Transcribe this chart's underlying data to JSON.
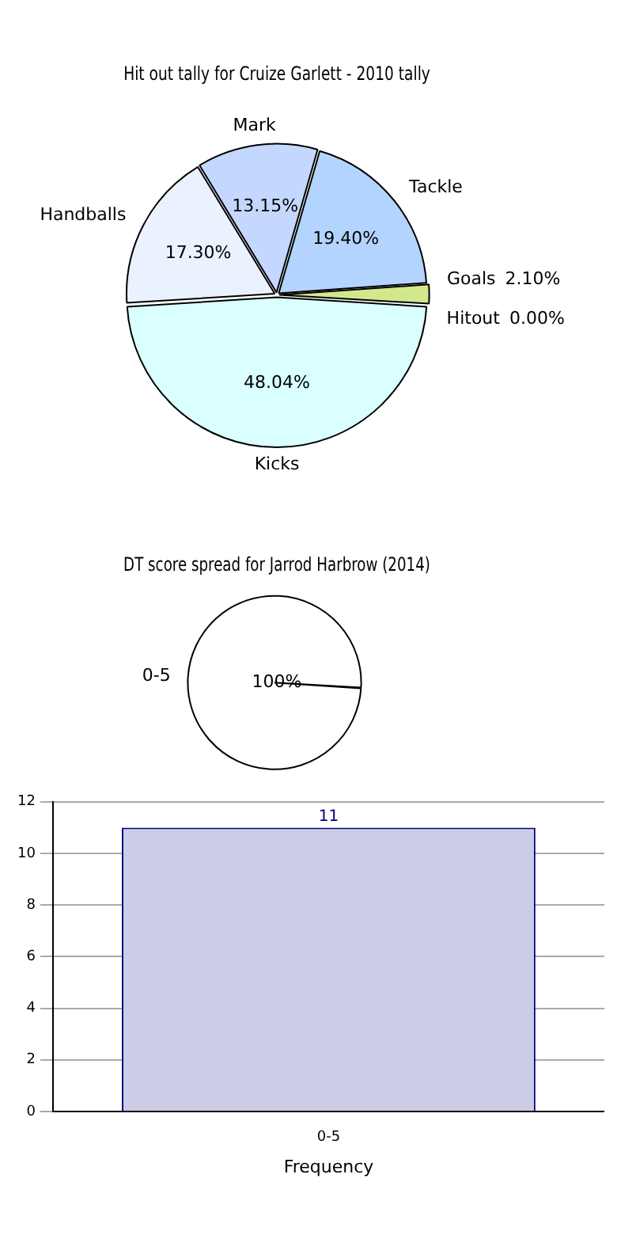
{
  "chart_data": [
    {
      "type": "pie",
      "title": "Hit out tally for Cruize Garlett - 2010 tally",
      "categories": [
        "Kicks",
        "Handballs",
        "Mark",
        "Tackle",
        "Goals",
        "Hitout"
      ],
      "values": [
        48.04,
        17.3,
        13.15,
        19.4,
        2.1,
        0.0
      ],
      "value_labels": [
        "48.04%",
        "17.30%",
        "13.15%",
        "19.40%",
        "2.10%",
        "0.00%"
      ],
      "colors": [
        "#d9ffff",
        "#eaf2ff",
        "#c4d8ff",
        "#b3d4ff",
        "#d1e98c",
        "#ffffff"
      ],
      "legend": false
    },
    {
      "type": "pie",
      "title": "DT score spread for Jarrod Harbrow (2014)",
      "categories": [
        "0-5"
      ],
      "values": [
        100
      ],
      "value_labels": [
        "100%"
      ],
      "colors": [
        "#ffffff"
      ],
      "legend": false
    },
    {
      "type": "bar",
      "categories": [
        "0-5"
      ],
      "values": [
        11
      ],
      "color": "#ccccE6",
      "xlabel": "Frequency",
      "ylim": [
        0,
        12
      ],
      "yticks": [
        0,
        2,
        4,
        6,
        8,
        10,
        12
      ],
      "grid": "y",
      "data_labels": true,
      "legend": false
    }
  ]
}
